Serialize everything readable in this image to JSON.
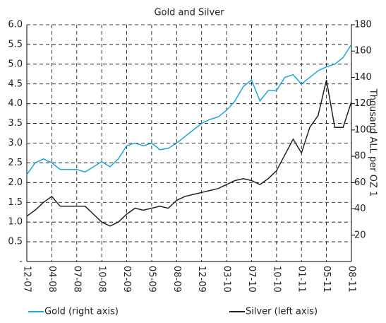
{
  "chart_data": {
    "type": "line",
    "title": "Gold and Silver",
    "y2label": "Thousand ALL per OZ 1",
    "categories": [
      "12-07",
      null,
      null,
      "04-08",
      null,
      null,
      "07-08",
      null,
      null,
      "10-08",
      null,
      null,
      "02-09",
      null,
      null,
      "05-09",
      null,
      null,
      "08-09",
      null,
      null,
      "12-09",
      null,
      null,
      "03-10",
      null,
      null,
      "07-10",
      null,
      null,
      "10-10",
      null,
      null,
      "01-11",
      null,
      null,
      "05-11",
      null,
      null,
      "08-11"
    ],
    "series": [
      {
        "name": "Gold (right axis)",
        "color": "#1aa7e0",
        "axis": "y2",
        "values": [
          66,
          75,
          78,
          75,
          70,
          70,
          70,
          68,
          72,
          76,
          72,
          78,
          88,
          90,
          88,
          90,
          85,
          86,
          90,
          95,
          100,
          105,
          108,
          110,
          115,
          122,
          133,
          138,
          122,
          130,
          130,
          140,
          142,
          135,
          140,
          145,
          148,
          150,
          155,
          165
        ]
      },
      {
        "name": "Silver (left axis)",
        "color": "#222222",
        "values": [
          1.15,
          1.3,
          1.5,
          1.65,
          1.4,
          1.4,
          1.4,
          1.4,
          1.2,
          1.0,
          0.9,
          1.0,
          1.2,
          1.35,
          1.3,
          1.35,
          1.4,
          1.35,
          1.55,
          1.65,
          1.7,
          1.75,
          1.8,
          1.85,
          1.95,
          2.05,
          2.1,
          2.05,
          1.95,
          2.1,
          2.3,
          2.7,
          3.1,
          2.75,
          3.4,
          3.7,
          4.6,
          3.4,
          3.4,
          4.05
        ]
      }
    ],
    "ylim": [
      0,
      6
    ],
    "yticks": [
      {
        "value": 0,
        "label": "-"
      },
      0.5,
      {
        "value": 1,
        "label": "1.0"
      },
      1.5,
      {
        "value": 2,
        "label": "2.0"
      },
      2.5,
      {
        "value": 3,
        "label": "3.0"
      },
      3.5,
      {
        "value": 4,
        "label": "4.0"
      },
      4.5,
      {
        "value": 5,
        "label": "5.0"
      },
      5.5,
      {
        "value": 6,
        "label": "6.0"
      }
    ],
    "y2lim": [
      0,
      180
    ],
    "y2ticks": [
      20,
      40,
      60,
      80,
      100,
      120,
      140,
      160,
      180
    ],
    "grid": true
  }
}
